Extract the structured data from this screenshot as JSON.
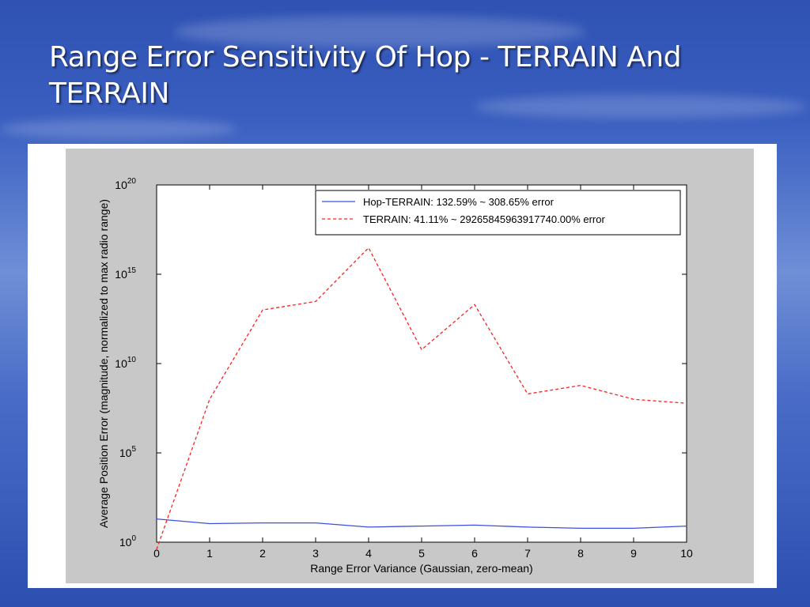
{
  "slide": {
    "title": "Range Error Sensitivity Of Hop - TERRAIN And TERRAIN"
  },
  "colors": {
    "series_blue": "#3b4fe0",
    "series_red": "#ff2020"
  },
  "chart_data": {
    "type": "line",
    "xlabel": "Range Error Variance (Gaussian, zero-mean)",
    "ylabel": "Average Position Error (magnitude, normalized to max radio range)",
    "xlim": [
      0,
      10
    ],
    "ylim": [
      1,
      1e+20
    ],
    "yscale": "log",
    "grid": false,
    "legend_position": "top-right",
    "x_ticks": [
      "0",
      "1",
      "2",
      "3",
      "4",
      "5",
      "6",
      "7",
      "8",
      "9",
      "10"
    ],
    "y_ticks": [
      {
        "base": "10",
        "exp": "0"
      },
      {
        "base": "10",
        "exp": "5"
      },
      {
        "base": "10",
        "exp": "10"
      },
      {
        "base": "10",
        "exp": "15"
      },
      {
        "base": "10",
        "exp": "20"
      }
    ],
    "x": [
      0,
      1,
      2,
      3,
      4,
      5,
      6,
      7,
      8,
      9,
      10
    ],
    "series": [
      {
        "name": "Hop-TERRAIN: 132.59% ~ 308.65% error",
        "style": "solid",
        "color": "#3b4fe0",
        "values": [
          20,
          11,
          12,
          12,
          7,
          8,
          9,
          7,
          6,
          6,
          8
        ]
      },
      {
        "name": "TERRAIN: 41.11% ~ 29265845963917740.00% error",
        "style": "dashed",
        "color": "#ff2020",
        "values": [
          0.4,
          100000000,
          10000000000000.0,
          30000000000000.0,
          3e+16,
          60000000000.0,
          20000000000000.0,
          200000000.0,
          600000000.0,
          100000000.0,
          60000000.0
        ]
      }
    ]
  }
}
